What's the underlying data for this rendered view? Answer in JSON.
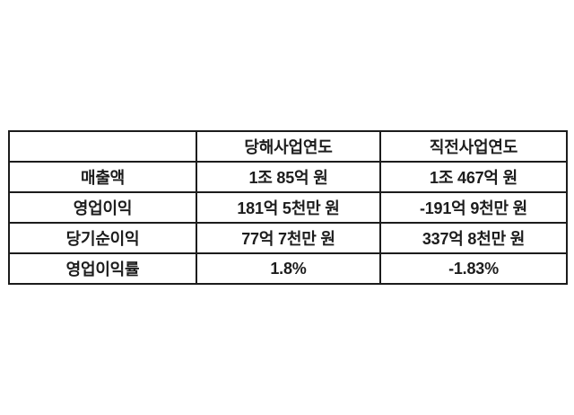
{
  "chart_data": {
    "type": "table",
    "title": "",
    "columns": [
      "",
      "당해사업연도",
      "직전사업연도"
    ],
    "rows": [
      [
        "매출액",
        "1조 85억 원",
        "1조 467억 원"
      ],
      [
        "영업이익",
        "181억 5천만 원",
        "-191억 9천만 원"
      ],
      [
        "당기순이익",
        "77억 7천만 원",
        "337억 8천만 원"
      ],
      [
        "영업이익률",
        "1.8%",
        "-1.83%"
      ]
    ]
  },
  "table": {
    "headers": {
      "empty": "",
      "current_year": "당해사업연도",
      "previous_year": "직전사업연도"
    },
    "rows": [
      {
        "label": "매출액",
        "current": "1조 85억 원",
        "previous": "1조 467억 원"
      },
      {
        "label": "영업이익",
        "current": "181억 5천만 원",
        "previous": "-191억 9천만 원"
      },
      {
        "label": "당기순이익",
        "current": "77억 7천만 원",
        "previous": "337억 8천만 원"
      },
      {
        "label": "영업이익률",
        "current": "1.8%",
        "previous": "-1.83%"
      }
    ],
    "colors": {
      "border": "#1c1c1c",
      "text": "#1d1d1d",
      "background": "#ffffff"
    }
  }
}
